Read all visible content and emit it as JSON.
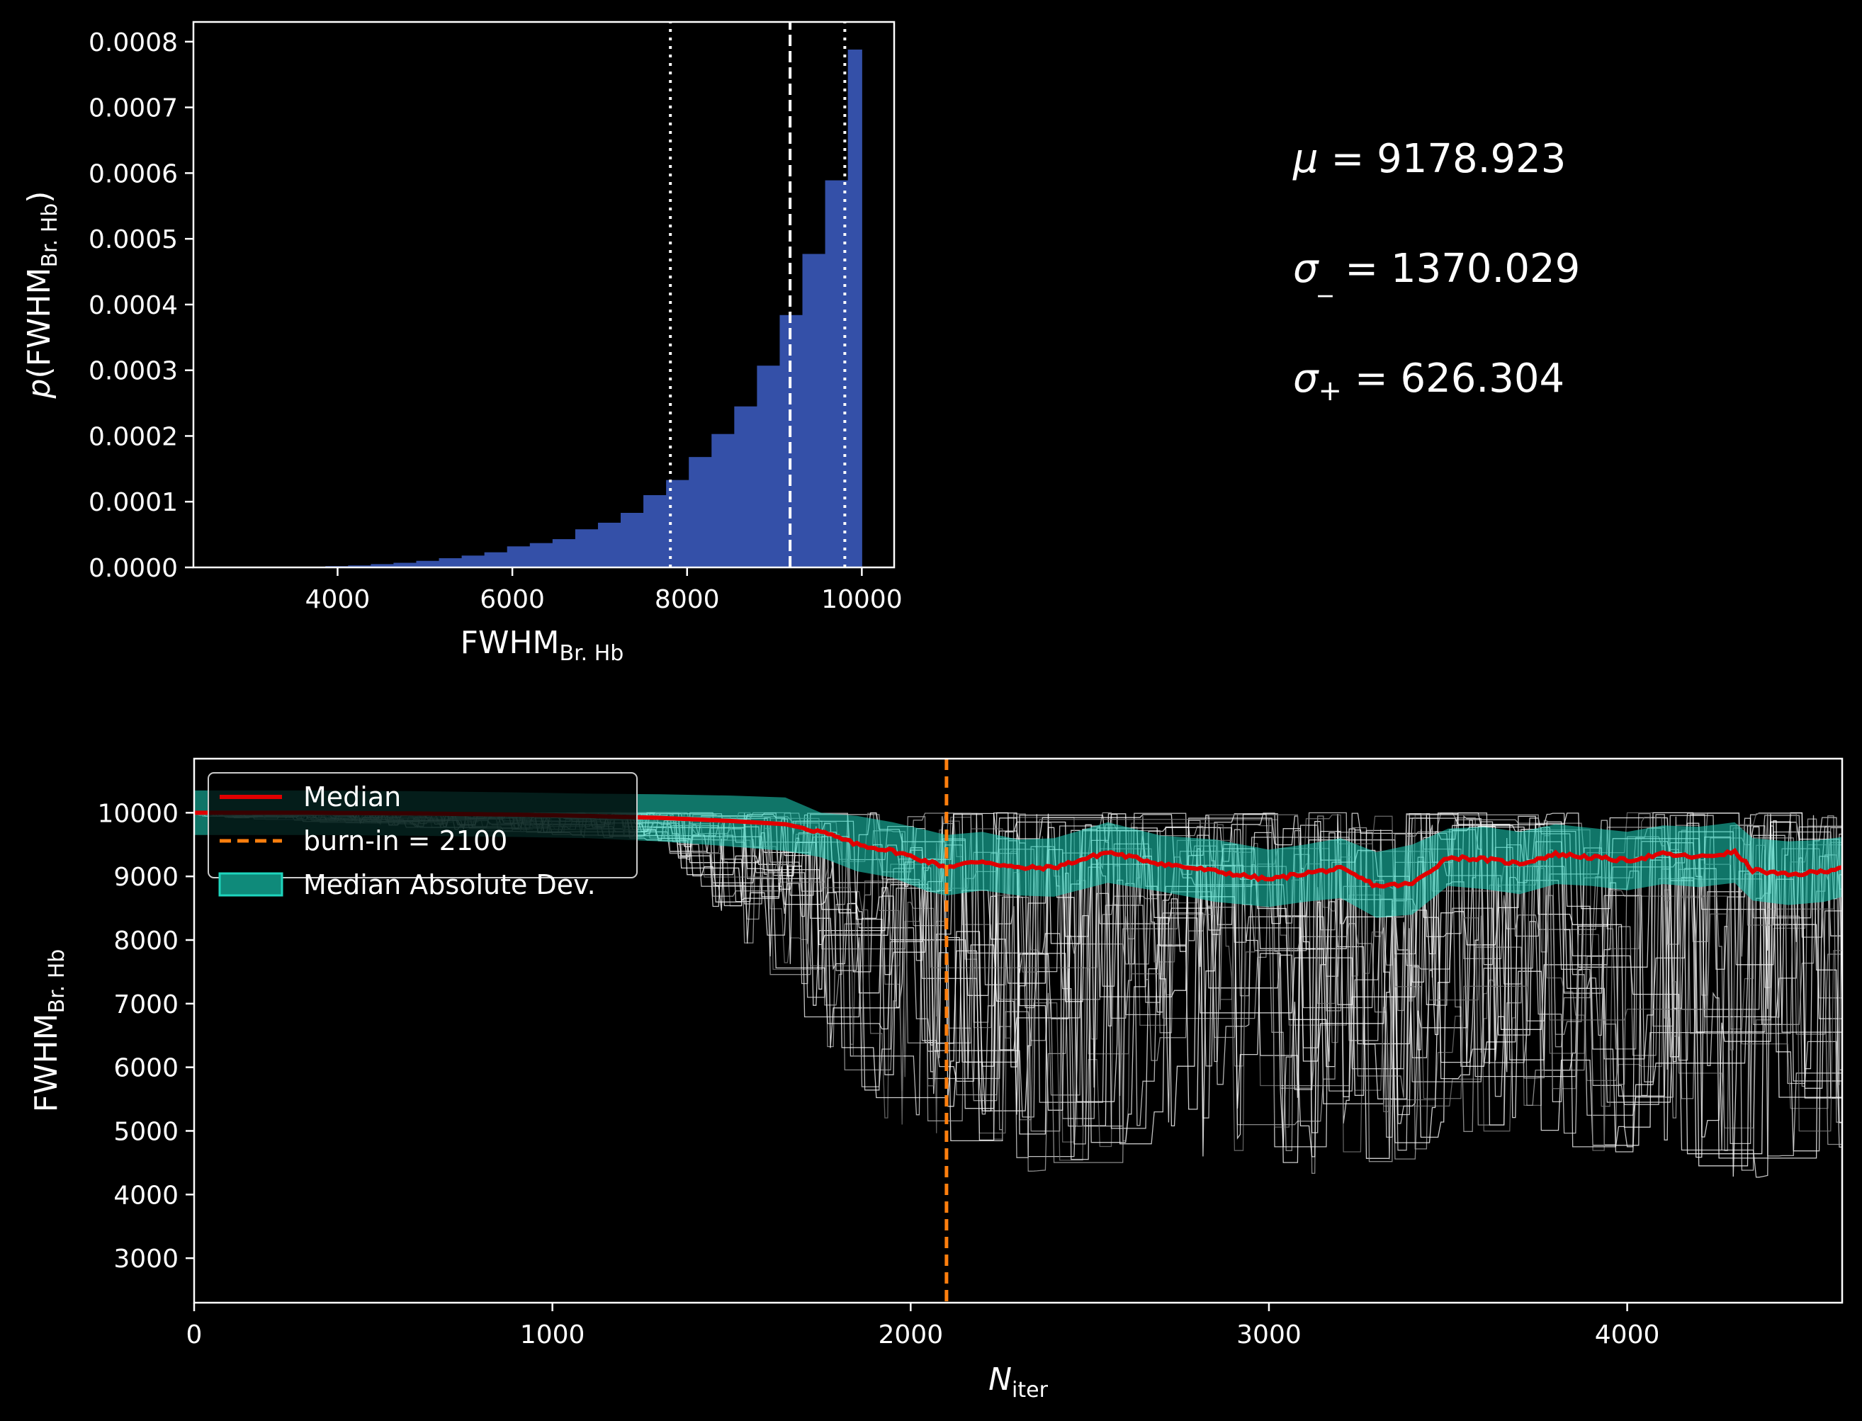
{
  "chart_data": [
    {
      "type": "bar",
      "panel": "histogram",
      "xlabel": "FWHM",
      "xlabel_sub": "Br. Hb",
      "ylabel_prefix": "p(FWHM",
      "ylabel_sub": "Br. Hb",
      "ylabel_suffix": ")",
      "xlim": [
        2350,
        10370
      ],
      "ylim": [
        0,
        0.00083
      ],
      "xticks": [
        4000,
        6000,
        8000,
        10000
      ],
      "yticks": [
        0.0,
        0.0001,
        0.0002,
        0.0003,
        0.0004,
        0.0005,
        0.0006,
        0.0007,
        0.0008
      ],
      "ytick_labels": [
        "0.0000",
        "0.0001",
        "0.0002",
        "0.0003",
        "0.0004",
        "0.0005",
        "0.0006",
        "0.0007",
        "0.0008"
      ],
      "bar_color": "#3450a8",
      "bins": [
        [
          3600,
          3860,
          1e-06
        ],
        [
          3860,
          4120,
          2e-06
        ],
        [
          4120,
          4380,
          3e-06
        ],
        [
          4380,
          4640,
          5e-06
        ],
        [
          4640,
          4900,
          7e-06
        ],
        [
          4900,
          5160,
          1e-05
        ],
        [
          5160,
          5420,
          1.4e-05
        ],
        [
          5420,
          5680,
          1.8e-05
        ],
        [
          5680,
          5940,
          2.3e-05
        ],
        [
          5940,
          6200,
          3.2e-05
        ],
        [
          6200,
          6460,
          3.7e-05
        ],
        [
          6460,
          6720,
          4.3e-05
        ],
        [
          6720,
          6980,
          5.8e-05
        ],
        [
          6980,
          7240,
          6.8e-05
        ],
        [
          7240,
          7500,
          8.3e-05
        ],
        [
          7500,
          7760,
          0.00011
        ],
        [
          7760,
          8020,
          0.000133
        ],
        [
          8020,
          8280,
          0.000168
        ],
        [
          8280,
          8540,
          0.000203
        ],
        [
          8540,
          8800,
          0.000245
        ],
        [
          8800,
          9060,
          0.000307
        ],
        [
          9060,
          9320,
          0.000384
        ],
        [
          9320,
          9580,
          0.000477
        ],
        [
          9580,
          9840,
          0.000589
        ],
        [
          9840,
          10000,
          0.000788
        ]
      ],
      "vlines": [
        {
          "x": 7808.894,
          "style": "dotted"
        },
        {
          "x": 9178.923,
          "style": "dashed"
        },
        {
          "x": 9805.227,
          "style": "dotted"
        }
      ]
    },
    {
      "type": "line",
      "panel": "trace",
      "xlabel": "N",
      "xlabel_sub": "iter",
      "ylabel": "FWHM",
      "ylabel_sub": "Br. Hb",
      "xlim": [
        0,
        4600
      ],
      "ylim": [
        2300,
        10850
      ],
      "xticks": [
        0,
        1000,
        2000,
        3000,
        4000
      ],
      "yticks": [
        3000,
        4000,
        5000,
        6000,
        7000,
        8000,
        9000,
        10000
      ],
      "burn_in": 2100,
      "median": {
        "x": [
          0,
          300,
          600,
          900,
          1100,
          1300,
          1500,
          1650,
          1750,
          1850,
          1950,
          2050,
          2100,
          2200,
          2300,
          2400,
          2550,
          2700,
          2850,
          3000,
          3100,
          3200,
          3300,
          3400,
          3500,
          3600,
          3700,
          3800,
          3900,
          4000,
          4100,
          4200,
          4300,
          4350,
          4450,
          4550,
          4600
        ],
        "y": [
          10000,
          10000,
          9990,
          9970,
          9950,
          9920,
          9870,
          9820,
          9700,
          9500,
          9400,
          9230,
          9150,
          9240,
          9130,
          9140,
          9380,
          9200,
          9080,
          8950,
          9050,
          9120,
          8850,
          8880,
          9300,
          9270,
          9200,
          9350,
          9300,
          9250,
          9350,
          9300,
          9380,
          9100,
          9020,
          9080,
          9150
        ]
      },
      "mad": {
        "upper": [
          10350,
          10350,
          10340,
          10320,
          10300,
          10290,
          10270,
          10240,
          10000,
          9950,
          9850,
          9720,
          9650,
          9700,
          9580,
          9600,
          9850,
          9640,
          9580,
          9420,
          9500,
          9600,
          9380,
          9500,
          9750,
          9780,
          9700,
          9820,
          9760,
          9700,
          9800,
          9780,
          9850,
          9600,
          9550,
          9580,
          9620
        ],
        "lower": [
          9650,
          9650,
          9640,
          9620,
          9600,
          9550,
          9470,
          9400,
          9300,
          9080,
          8980,
          8760,
          8700,
          8780,
          8700,
          8680,
          8900,
          8760,
          8600,
          8520,
          8600,
          8660,
          8350,
          8400,
          8850,
          8800,
          8720,
          8880,
          8850,
          8780,
          8880,
          8830,
          8900,
          8620,
          8550,
          8600,
          8680
        ]
      },
      "legend": {
        "position": "upper-left",
        "entries": [
          {
            "label": "Median",
            "color": "#e00000",
            "style": "line"
          },
          {
            "label": "burn-in = 2100",
            "color": "#ff7f0e",
            "style": "dashed"
          },
          {
            "label": "Median Absolute Dev.",
            "color": "#1ed5bd",
            "style": "patch"
          }
        ]
      },
      "colors": {
        "median": "#e00000",
        "mad": "#1ed5bd",
        "burnin": "#ff7f0e",
        "walkers": "#ffffff"
      }
    }
  ],
  "stats": {
    "mu_symbol": "μ",
    "mu_text": " = 9178.923",
    "sigma_symbol": "σ",
    "sigma_minus_sub": "_",
    "sigma_minus_text": " = 1370.029",
    "sigma_plus_sub": "+",
    "sigma_plus_text": " = 626.304"
  }
}
